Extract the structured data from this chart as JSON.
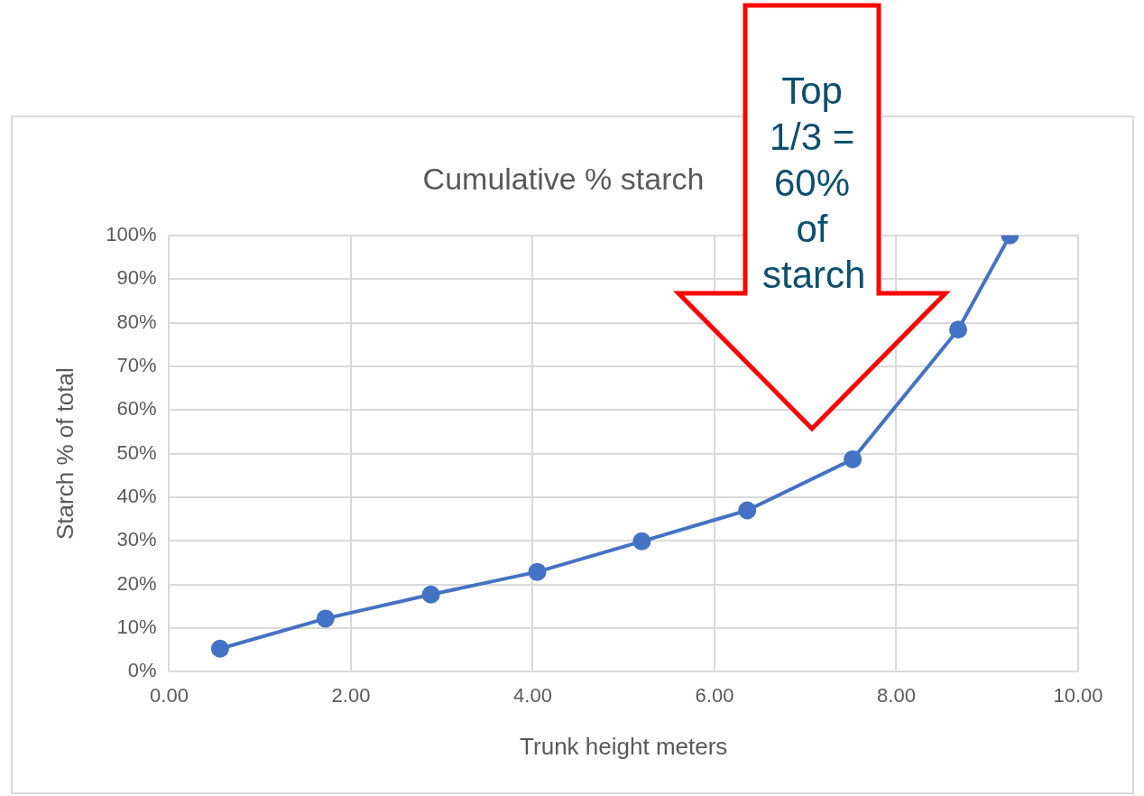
{
  "chart_data": {
    "type": "scatter",
    "title": "Cumulative % starch",
    "xlabel": "Trunk height meters",
    "ylabel": "Starch % of total",
    "annotations": [
      "Top 1/3 = 60% of starch"
    ],
    "series": [
      {
        "type": "line",
        "color": "#4472c4",
        "x": [
          0.56,
          1.72,
          2.88,
          4.05,
          5.2,
          6.36,
          7.52,
          8.68,
          9.25
        ],
        "values": [
          5.3,
          12.2,
          17.7,
          22.9,
          29.9,
          37,
          48.7,
          78.4,
          100
        ]
      }
    ],
    "xlim": [
      0,
      10
    ],
    "xticks": [
      {
        "value": 0,
        "label": "0.00"
      },
      {
        "value": 2,
        "label": "2.00"
      },
      {
        "value": 4,
        "label": "4.00"
      },
      {
        "value": 6,
        "label": "6.00"
      },
      {
        "value": 8,
        "label": "8.00"
      },
      {
        "value": 10,
        "label": "10.00"
      }
    ],
    "ylim": [
      0,
      100
    ],
    "yticks": [
      {
        "value": 0,
        "label": "0%"
      },
      {
        "value": 10,
        "label": "10%"
      },
      {
        "value": 20,
        "label": "20%"
      },
      {
        "value": 30,
        "label": "30%"
      },
      {
        "value": 40,
        "label": "40%"
      },
      {
        "value": 50,
        "label": "50%"
      },
      {
        "value": 60,
        "label": "60%"
      },
      {
        "value": 70,
        "label": "70%"
      },
      {
        "value": 80,
        "label": "80%"
      },
      {
        "value": 90,
        "label": "90%"
      },
      {
        "value": 100,
        "label": "100%"
      }
    ],
    "grid": true,
    "legend": false,
    "marker": "circle",
    "line_style": "solid"
  }
}
